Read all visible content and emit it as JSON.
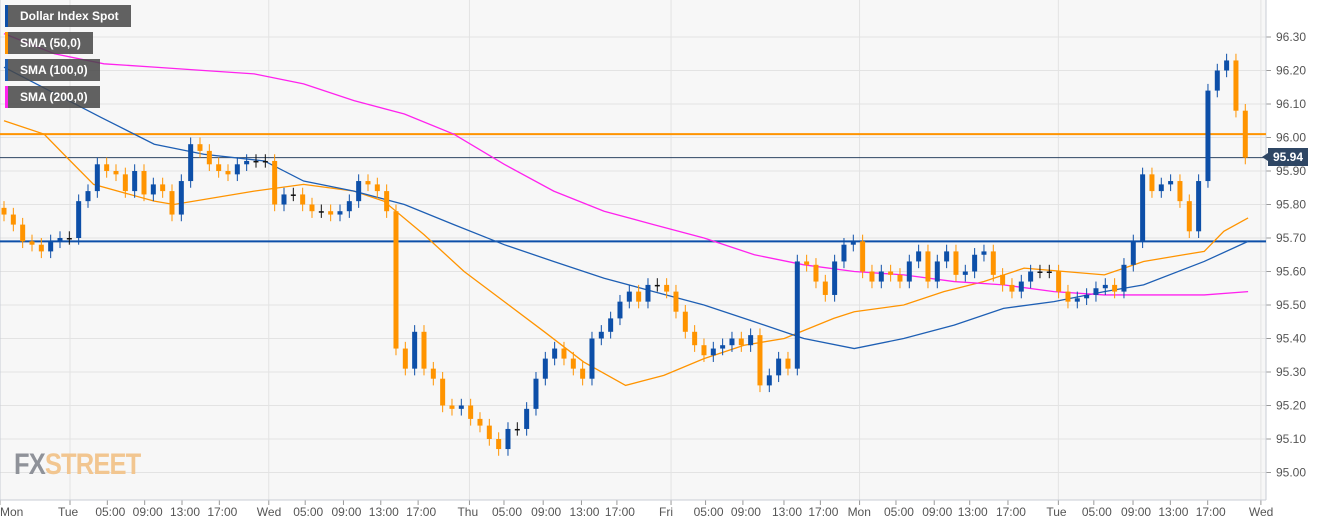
{
  "chart_data": {
    "type": "candlestick",
    "title": "Dollar Index Spot",
    "legend": [
      {
        "label": "Dollar Index Spot",
        "color": "#0d4fa8"
      },
      {
        "label": "SMA (50,0)",
        "color": "#ff9400"
      },
      {
        "label": "SMA (100,0)",
        "color": "#1e5fb4"
      },
      {
        "label": "SMA (200,0)",
        "color": "#ff22ee"
      }
    ],
    "legend_placement": "top-left",
    "ylim": [
      94.96,
      96.4
    ],
    "y_ticks": [
      "95.00",
      "95.10",
      "95.20",
      "95.30",
      "95.40",
      "95.50",
      "95.60",
      "95.70",
      "95.80",
      "95.90",
      "96.00",
      "96.10",
      "96.20",
      "96.30"
    ],
    "x_ticks": [
      {
        "label": "Mon",
        "index": 0
      },
      {
        "label": "Tue",
        "index": 7.5
      },
      {
        "label": "05:00",
        "index": 11.5
      },
      {
        "label": "09:00",
        "index": 15.5
      },
      {
        "label": "13:00",
        "index": 19.5
      },
      {
        "label": "17:00",
        "index": 23.5
      },
      {
        "label": "Wed",
        "index": 28.8
      },
      {
        "label": "05:00",
        "index": 32.7
      },
      {
        "label": "09:00",
        "index": 36.8
      },
      {
        "label": "13:00",
        "index": 40.8
      },
      {
        "label": "17:00",
        "index": 44.8
      },
      {
        "label": "Thu",
        "index": 50.3
      },
      {
        "label": "05:00",
        "index": 54
      },
      {
        "label": "09:00",
        "index": 58.2
      },
      {
        "label": "13:00",
        "index": 62.3
      },
      {
        "label": "17:00",
        "index": 66.1
      },
      {
        "label": "Fri",
        "index": 71.9
      },
      {
        "label": "05:00",
        "index": 75.6
      },
      {
        "label": "09:00",
        "index": 79.6
      },
      {
        "label": "13:00",
        "index": 84
      },
      {
        "label": "17:00",
        "index": 87.9
      },
      {
        "label": "Mon",
        "index": 92.1
      },
      {
        "label": "05:00",
        "index": 96
      },
      {
        "label": "09:00",
        "index": 100.1
      },
      {
        "label": "13:00",
        "index": 103.9
      },
      {
        "label": "17:00",
        "index": 108
      },
      {
        "label": "Tue",
        "index": 113.4
      },
      {
        "label": "05:00",
        "index": 117.2
      },
      {
        "label": "09:00",
        "index": 121.4
      },
      {
        "label": "13:00",
        "index": 125.4
      },
      {
        "label": "17:00",
        "index": 129.4
      },
      {
        "label": "Wed",
        "index": 135.1
      }
    ],
    "closes": [
      95.77,
      95.74,
      95.69,
      95.68,
      95.66,
      95.69,
      95.7,
      95.7,
      95.81,
      95.84,
      95.92,
      95.9,
      95.89,
      95.84,
      95.9,
      95.83,
      95.86,
      95.84,
      95.77,
      95.87,
      95.98,
      95.96,
      95.92,
      95.9,
      95.89,
      95.92,
      95.93,
      95.93,
      95.93,
      95.8,
      95.83,
      95.83,
      95.8,
      95.78,
      95.78,
      95.77,
      95.78,
      95.81,
      95.87,
      95.86,
      95.84,
      95.78,
      95.37,
      95.31,
      95.42,
      95.31,
      95.28,
      95.2,
      95.19,
      95.2,
      95.16,
      95.14,
      95.1,
      95.07,
      95.13,
      95.13,
      95.19,
      95.28,
      95.34,
      95.37,
      95.34,
      95.31,
      95.28,
      95.4,
      95.42,
      95.46,
      95.51,
      95.54,
      95.51,
      95.56,
      95.56,
      95.54,
      95.48,
      95.42,
      95.38,
      95.35,
      95.37,
      95.38,
      95.4,
      95.38,
      95.41,
      95.26,
      95.29,
      95.34,
      95.31,
      95.63,
      95.62,
      95.57,
      95.53,
      95.63,
      95.68,
      95.69,
      95.6,
      95.57,
      95.6,
      95.59,
      95.57,
      95.63,
      95.66,
      95.57,
      95.63,
      95.66,
      95.59,
      95.6,
      95.65,
      95.66,
      95.59,
      95.56,
      95.54,
      95.57,
      95.6,
      95.6,
      95.6,
      95.54,
      95.51,
      95.52,
      95.53,
      95.55,
      95.56,
      95.54,
      95.62,
      95.69,
      95.89,
      95.84,
      95.86,
      95.87,
      95.81,
      95.72,
      95.87,
      96.14,
      96.2,
      96.23,
      96.08,
      95.94
    ],
    "sma50": [
      [
        0,
        96.05
      ],
      [
        4.3,
        96.01
      ],
      [
        6.4,
        95.95
      ],
      [
        9.6,
        95.86
      ],
      [
        16.1,
        95.81
      ],
      [
        18.2,
        95.8
      ],
      [
        26.8,
        95.84
      ],
      [
        32.1,
        95.86
      ],
      [
        37.5,
        95.84
      ],
      [
        40.7,
        95.81
      ],
      [
        45,
        95.71
      ],
      [
        49.3,
        95.6
      ],
      [
        53.6,
        95.51
      ],
      [
        57.9,
        95.42
      ],
      [
        62.1,
        95.33
      ],
      [
        66.6,
        95.26
      ],
      [
        70.7,
        95.29
      ],
      [
        75,
        95.34
      ],
      [
        79.3,
        95.38
      ],
      [
        83.6,
        95.4
      ],
      [
        88.9,
        95.46
      ],
      [
        91.1,
        95.48
      ],
      [
        96.4,
        95.5
      ],
      [
        100.7,
        95.54
      ],
      [
        105,
        95.57
      ],
      [
        109.3,
        95.61
      ],
      [
        113.6,
        95.6
      ],
      [
        117.9,
        95.59
      ],
      [
        122.1,
        95.63
      ],
      [
        126.4,
        95.65
      ],
      [
        128.6,
        95.66
      ],
      [
        130.7,
        95.72
      ],
      [
        133.3,
        95.76
      ]
    ],
    "sma100": [
      [
        0,
        96.21
      ],
      [
        10.4,
        96.06
      ],
      [
        16.1,
        95.98
      ],
      [
        21.4,
        95.95
      ],
      [
        27.9,
        95.93
      ],
      [
        32.1,
        95.87
      ],
      [
        37.5,
        95.84
      ],
      [
        42.9,
        95.8
      ],
      [
        48.2,
        95.74
      ],
      [
        53.6,
        95.68
      ],
      [
        58.9,
        95.63
      ],
      [
        64.3,
        95.58
      ],
      [
        69.6,
        95.54
      ],
      [
        75,
        95.5
      ],
      [
        80.4,
        95.45
      ],
      [
        85.7,
        95.4
      ],
      [
        91.1,
        95.37
      ],
      [
        96.4,
        95.4
      ],
      [
        101.8,
        95.44
      ],
      [
        107.1,
        95.49
      ],
      [
        112.5,
        95.51
      ],
      [
        117.9,
        95.54
      ],
      [
        122.1,
        95.56
      ],
      [
        128.6,
        95.63
      ],
      [
        133.3,
        95.69
      ]
    ],
    "sma200": [
      [
        0,
        96.31
      ],
      [
        5.4,
        96.25
      ],
      [
        10.7,
        96.22
      ],
      [
        16.1,
        96.21
      ],
      [
        21.4,
        96.2
      ],
      [
        26.8,
        96.19
      ],
      [
        32.1,
        96.16
      ],
      [
        37.5,
        96.11
      ],
      [
        42.9,
        96.07
      ],
      [
        48.2,
        96.01
      ],
      [
        53.6,
        95.92
      ],
      [
        58.9,
        95.84
      ],
      [
        64.3,
        95.78
      ],
      [
        69.6,
        95.74
      ],
      [
        75,
        95.7
      ],
      [
        80.4,
        95.65
      ],
      [
        85.7,
        95.62
      ],
      [
        91.1,
        95.6
      ],
      [
        96.4,
        95.59
      ],
      [
        101.8,
        95.57
      ],
      [
        107.1,
        95.56
      ],
      [
        112.5,
        95.54
      ],
      [
        117.9,
        95.53
      ],
      [
        123.2,
        95.53
      ],
      [
        128.6,
        95.53
      ],
      [
        133.3,
        95.54
      ]
    ],
    "horizontal_lines": [
      {
        "price": 96.01,
        "color": "#ff9400"
      },
      {
        "price": 95.69,
        "color": "#0d4fa8"
      },
      {
        "price": 95.94,
        "color": "#2e4664"
      }
    ],
    "last_price": "95.94",
    "colors": {
      "up": "#0d4fa8",
      "down": "#ff9400",
      "doji": "#111111",
      "grid": "#e3e3e3",
      "background": "#f7f7f7"
    },
    "grid": true
  },
  "logo": {
    "part1": "FX",
    "part2": "STREET"
  }
}
